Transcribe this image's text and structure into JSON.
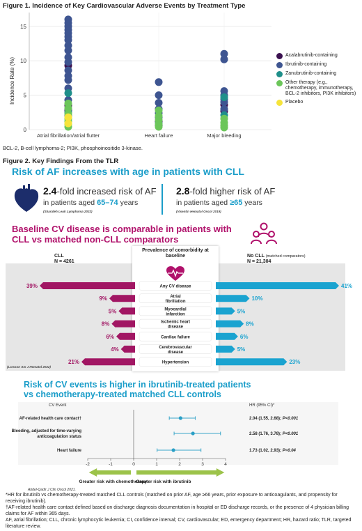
{
  "figure1": {
    "title": "Figure 1. Incidence of Key Cardiovascular Adverse Events by Treatment Type",
    "ylabel": "Incidence Rate (%)",
    "yticks": [
      "0",
      "5",
      "10",
      "15"
    ],
    "footnote": "BCL-2, B-cell lymphoma-2; PI3K, phosphoinositide 3-kinase.",
    "legend": [
      {
        "label": "Acalabrutinib-containing",
        "color": "#3b1150"
      },
      {
        "label": "Ibrutinib-containing",
        "color": "#3e5591"
      },
      {
        "label": "Zanubrutinib-containing",
        "color": "#1f8f8a"
      },
      {
        "label": "Other therapy (e.g., chemotherapy, immunotherapy, BCL-2 inhibitors, PI3K inhibitors)",
        "color": "#6cc65a"
      },
      {
        "label": "Placebo",
        "color": "#f6e43b"
      }
    ]
  },
  "chart_data": {
    "type": "scatter",
    "categories": [
      "Atrial fibrillation/atrial flutter",
      "Heart failure",
      "Major bleeding"
    ],
    "ylabel": "Incidence Rate (%)",
    "ylim": [
      0,
      17
    ],
    "series": [
      {
        "name": "Acalabrutinib-containing",
        "points": [
          [
            0,
            9.3
          ],
          [
            0,
            2.8
          ],
          [
            0,
            3.5
          ],
          [
            1,
            1.2
          ],
          [
            1,
            0.6
          ],
          [
            2,
            2.7
          ],
          [
            2,
            3.6
          ]
        ]
      },
      {
        "name": "Ibrutinib-containing",
        "points": [
          [
            0,
            16.0
          ],
          [
            0,
            15.5
          ],
          [
            0,
            15.0
          ],
          [
            0,
            14.5
          ],
          [
            0,
            14.0
          ],
          [
            0,
            13.5
          ],
          [
            0,
            13.0
          ],
          [
            0,
            12.2
          ],
          [
            0,
            11.5
          ],
          [
            0,
            10.5
          ],
          [
            0,
            9.8
          ],
          [
            0,
            8.6
          ],
          [
            0,
            7.8
          ],
          [
            0,
            7.2
          ],
          [
            0,
            6.0
          ],
          [
            0,
            4.3
          ],
          [
            0,
            3.0
          ],
          [
            0,
            2.0
          ],
          [
            1,
            6.9
          ],
          [
            1,
            5.0
          ],
          [
            1,
            3.9
          ],
          [
            1,
            3.0
          ],
          [
            1,
            2.4
          ],
          [
            1,
            1.8
          ],
          [
            2,
            11.0
          ],
          [
            2,
            10.2
          ],
          [
            2,
            5.6
          ],
          [
            2,
            5.0
          ],
          [
            2,
            4.4
          ],
          [
            2,
            4.0
          ],
          [
            2,
            3.0
          ]
        ]
      },
      {
        "name": "Zanubrutinib-containing",
        "points": [
          [
            0,
            5.3
          ],
          [
            0,
            2.5
          ],
          [
            1,
            0.9
          ],
          [
            2,
            4.7
          ],
          [
            2,
            2.1
          ]
        ]
      },
      {
        "name": "Other therapy (e.g., chemotherapy, immunotherapy, BCL-2 inhibitors, PI3K inhibitors)",
        "points": [
          [
            0,
            3.8
          ],
          [
            0,
            3.1
          ],
          [
            0,
            2.3
          ],
          [
            0,
            1.6
          ],
          [
            0,
            1.2
          ],
          [
            0,
            0.8
          ],
          [
            0,
            0.4
          ],
          [
            1,
            2.8
          ],
          [
            1,
            2.0
          ],
          [
            1,
            1.4
          ],
          [
            1,
            0.8
          ],
          [
            1,
            0.4
          ],
          [
            2,
            1.6
          ],
          [
            2,
            1.0
          ],
          [
            2,
            0.6
          ],
          [
            2,
            0.3
          ]
        ]
      },
      {
        "name": "Placebo",
        "points": [
          [
            0,
            1.8
          ],
          [
            0,
            0.9
          ]
        ]
      }
    ]
  },
  "figure2": {
    "title": "Figure 2. Key Findings From the TLR",
    "section1_title": "Risk of AF increases with age in patients with CLL",
    "stat1": {
      "value": "2.4",
      "text": "-fold increased risk of AF",
      "line2_a": "in patients aged ",
      "line2_b": "65–74",
      "line2_c": " years",
      "cite": "(Sharafeh Leuk Lymphoma 2022)"
    },
    "stat2": {
      "value": "2.8",
      "text": "-fold higher risk of AF",
      "line2_a": "in patients aged ",
      "line2_b": "≥65",
      "line2_c": " years",
      "cite": "(Visentin Hematol Oncol 2019)"
    },
    "section2_title_l1": "Baseline CV disease is comparable in patients with",
    "section2_title_l2": "CLL vs matched non-CLL comparators",
    "cll_label": "CLL",
    "cll_n": "N = 4261",
    "center_header": "Prevalence of comorbidity at baseline",
    "nocll_label": "No CLL",
    "nocll_sub": "(matched comparators)",
    "nocll_n": "N = 21,304",
    "cite2": "(Larsson Am J Hematol 2022)"
  },
  "comorbidity_data": {
    "type": "bar",
    "categories": [
      "Any CV disease",
      "Atrial fibrillation",
      "Myocardial infarction",
      "Ischemic heart disease",
      "Cardiac failure",
      "Cerebrovascular disease",
      "Hypertension"
    ],
    "series": [
      {
        "name": "CLL",
        "values": [
          39,
          9,
          5,
          8,
          6,
          4,
          21
        ],
        "labels": [
          "39%",
          "9%",
          "5%",
          "8%",
          "6%",
          "4%",
          "21%"
        ]
      },
      {
        "name": "No CLL",
        "values": [
          41,
          10,
          5,
          8,
          6,
          5,
          23
        ],
        "labels": [
          "41%",
          "10%",
          "5%",
          "8%",
          "6%",
          "5%",
          "23%"
        ]
      }
    ]
  },
  "section3": {
    "title_l1": "Risk of CV events is higher in ibrutinib-treated patients",
    "title_l2": "vs chemotherapy-treated matched CLL controls",
    "col_event": "CV Event",
    "col_hr": "HR (95% CI)*",
    "xticks": [
      "-2",
      "-1",
      "0",
      "1",
      "2",
      "3",
      "4"
    ],
    "left_arrow": "Greater risk with chemotherapy",
    "right_arrow": "Greater risk with ibrutinib",
    "cite": "Abdel-Qadir J Clin Oncol 2021."
  },
  "forest_data": {
    "type": "scatter",
    "xlim": [
      -2,
      4
    ],
    "rows": [
      {
        "event": "AF-related health care contact†",
        "hr": 2.04,
        "lo": 1.55,
        "hi": 2.68,
        "hr_text": "2.04 (1.55, 2.68); ",
        "p_text": "P<0.001"
      },
      {
        "event": "Bleeding, adjusted for time-varying anticoagulation status",
        "hr": 2.58,
        "lo": 1.76,
        "hi": 3.78,
        "hr_text": "2.58 (1.76, 3.78); ",
        "p_text": "P<0.001"
      },
      {
        "event": "Heart failure",
        "hr": 1.73,
        "lo": 1.02,
        "hi": 2.93,
        "hr_text": "1.73 (1.02, 2.93); ",
        "p_text": "P=0.04"
      }
    ]
  },
  "footnotes": {
    "f1": "*HR for ibrutinib vs chemotherapy-treated matched CLL controls (matched on prior AF, age ≥66 years, prior exposure to anticoagulants, and propensity for receiving ibrutinib).",
    "f2": "†AF-related health care contact defined based on discharge diagnosis documentation in hospital or ED discharge records, or the presence of 4 physician billing claims for AF within 365 days.",
    "f3": "AF, atrial fibrillation; CLL, chronic lymphocytic leukemia; CI, confidence interval; CV, cardiovascular; ED, emergency department; HR, hazard ratio; TLR, targeted literature review."
  }
}
